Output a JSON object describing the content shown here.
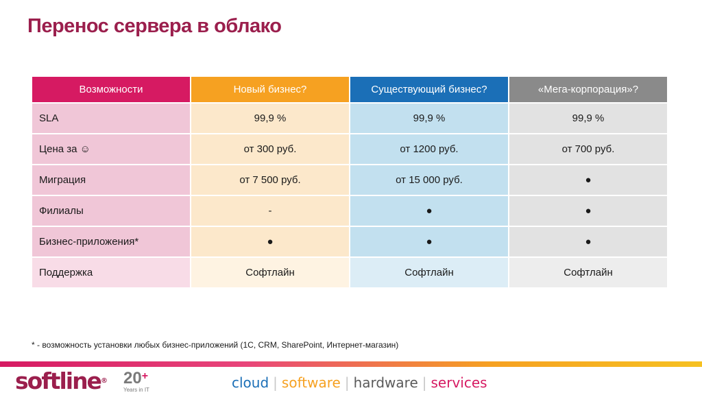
{
  "title": "Перенос сервера в облако",
  "table": {
    "headers": [
      "Возможности",
      "Новый бизнес?",
      "Существующий бизнес?",
      "«Мега-корпорация»?"
    ],
    "rows": [
      [
        "SLA",
        "99,9 %",
        "99,9 %",
        "99,9 %"
      ],
      [
        "Цена за ☺",
        "от 300 руб.",
        "от 1200 руб.",
        "от 700 руб."
      ],
      [
        "Миграция",
        "от 7 500 руб.",
        "от 15 000 руб.",
        "●"
      ],
      [
        "Филиалы",
        "-",
        "●",
        "●"
      ],
      [
        "Бизнес-приложения*",
        "●",
        "●",
        "●"
      ],
      [
        "Поддержка",
        "Софтлайн",
        "Софтлайн",
        "Софтлайн"
      ]
    ]
  },
  "footnote": "* - возможность установки любых бизнес-приложений (1С, CRM, SharePoint, Интернет-магазин)",
  "footer": {
    "logo": "softline",
    "logo_reg": "®",
    "years_big": "20",
    "years_plus": "+",
    "years_small": "Years in IT",
    "tagline": {
      "cloud": "cloud",
      "software": "software",
      "hardware": "hardware",
      "services": "services",
      "separator": "|"
    }
  },
  "colors": {
    "title": "#9b1f4d",
    "header_features": "#d61a62",
    "header_new": "#f6a121",
    "header_existing": "#1b6fb7",
    "header_mega": "#8a8a8a"
  }
}
